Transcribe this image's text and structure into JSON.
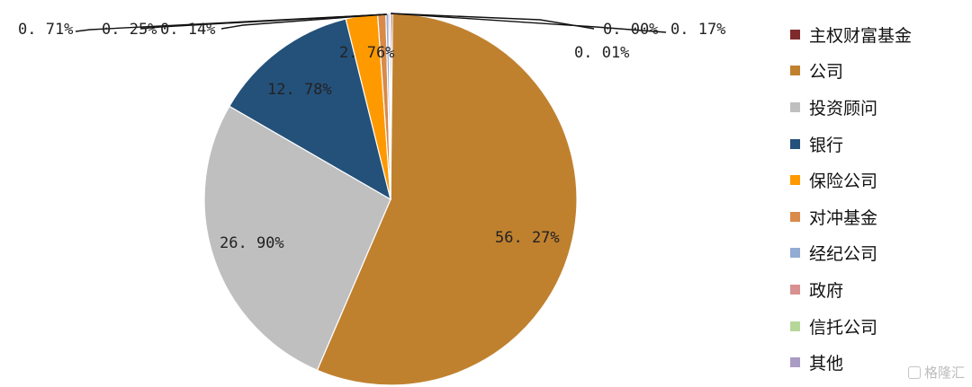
{
  "chart_data": {
    "type": "pie",
    "title": "",
    "series": [
      {
        "name": "主权财富基金",
        "value": 0.17,
        "label": "0.17%",
        "color": "#7f2b2b"
      },
      {
        "name": "公司",
        "value": 56.27,
        "label": "56.27%",
        "color": "#c0812f"
      },
      {
        "name": "投资顾问",
        "value": 26.9,
        "label": "26.90%",
        "color": "#bfbfbf"
      },
      {
        "name": "银行",
        "value": 12.78,
        "label": "12.78%",
        "color": "#24517a"
      },
      {
        "name": "保险公司",
        "value": 2.76,
        "label": "2.76%",
        "color": "#ff9900"
      },
      {
        "name": "对冲基金",
        "value": 0.71,
        "label": "0.71%",
        "color": "#d98a48"
      },
      {
        "name": "经纪公司",
        "value": 0.25,
        "label": "0.25%",
        "color": "#93acd3"
      },
      {
        "name": "政府",
        "value": 0.14,
        "label": "0.14%",
        "color": "#d89090"
      },
      {
        "name": "信托公司",
        "value": 0.01,
        "label": "0.01%",
        "color": "#b6d79a"
      },
      {
        "name": "其他",
        "value": 0.0,
        "label": "0.00%",
        "color": "#a99bc4"
      }
    ],
    "legend_position": "right",
    "display_labels": {
      "sovereign": "0. 17%",
      "company": "56. 27%",
      "advisor": "26. 90%",
      "bank": "12. 78%",
      "insurance": "2. 76%",
      "hedge": "0. 71%",
      "broker": "0. 25%",
      "government": "0. 14%",
      "trust": "0. 01%",
      "other": "0. 00%"
    }
  },
  "watermark": {
    "text": "格隆汇"
  }
}
